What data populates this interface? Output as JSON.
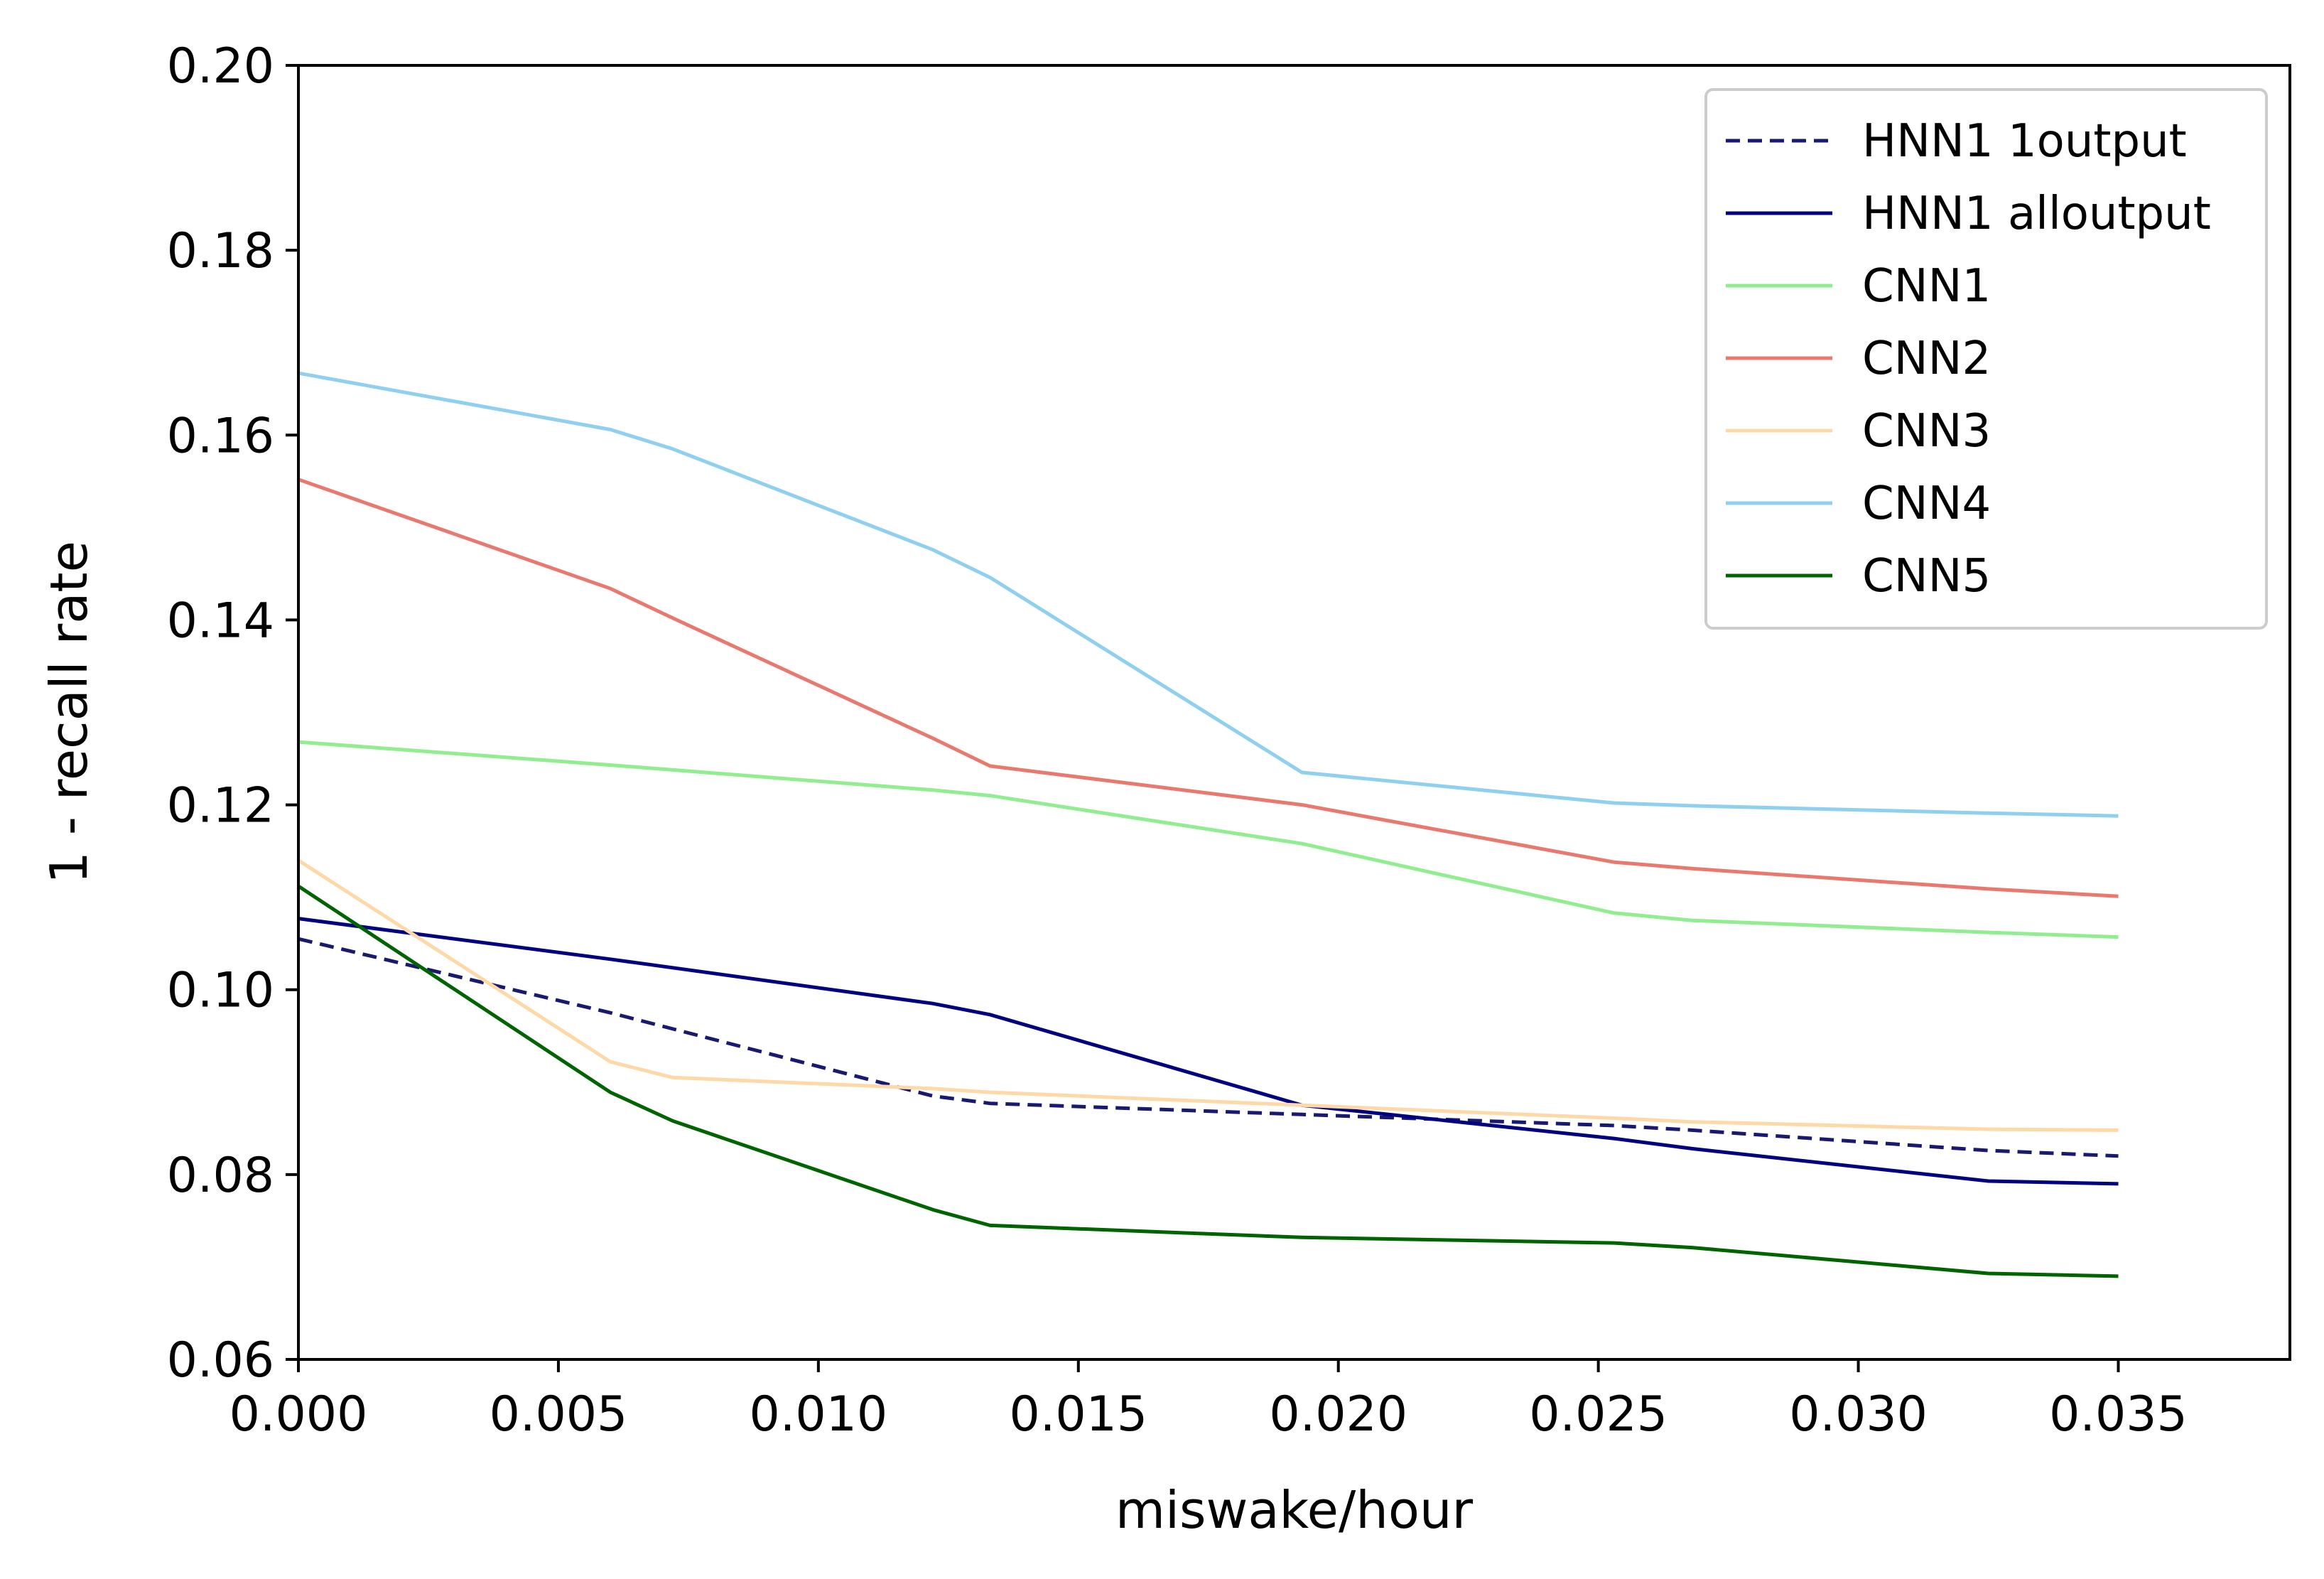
{
  "chart_data": {
    "type": "line",
    "xlabel": "miswake/hour",
    "ylabel": "1 - recall rate",
    "xlim": [
      0,
      0.0383
    ],
    "ylim": [
      0.06,
      0.2
    ],
    "xticks": [
      "0.000",
      "0.005",
      "0.010",
      "0.015",
      "0.020",
      "0.025",
      "0.030",
      "0.035"
    ],
    "yticks": [
      "0.06",
      "0.08",
      "0.10",
      "0.12",
      "0.14",
      "0.16",
      "0.18",
      "0.20"
    ],
    "grid": false,
    "legend_position": "top-right",
    "series": [
      {
        "name": "HNN1 1output",
        "color": "#191970",
        "dash": true,
        "points": [
          [
            0.0,
            0.1055
          ],
          [
            0.006,
            0.0975
          ],
          [
            0.0122,
            0.0885
          ],
          [
            0.0133,
            0.0877
          ],
          [
            0.0193,
            0.0865
          ],
          [
            0.0253,
            0.0853
          ],
          [
            0.0268,
            0.0848
          ],
          [
            0.0325,
            0.0826
          ],
          [
            0.035,
            0.082
          ]
        ]
      },
      {
        "name": "HNN1 alloutput",
        "color": "#000080",
        "dash": false,
        "points": [
          [
            0.0,
            0.1077
          ],
          [
            0.006,
            0.1033
          ],
          [
            0.0122,
            0.0985
          ],
          [
            0.0133,
            0.0973
          ],
          [
            0.0193,
            0.0875
          ],
          [
            0.0253,
            0.0839
          ],
          [
            0.0268,
            0.0828
          ],
          [
            0.0325,
            0.0793
          ],
          [
            0.035,
            0.079
          ]
        ]
      },
      {
        "name": "CNN1",
        "color": "#90ee90",
        "dash": false,
        "points": [
          [
            0.0,
            0.1268
          ],
          [
            0.006,
            0.1243
          ],
          [
            0.0122,
            0.1216
          ],
          [
            0.0133,
            0.121
          ],
          [
            0.0193,
            0.1158
          ],
          [
            0.0253,
            0.1083
          ],
          [
            0.0268,
            0.1075
          ],
          [
            0.0325,
            0.1062
          ],
          [
            0.035,
            0.1057
          ]
        ]
      },
      {
        "name": "CNN2",
        "color": "#e9796f",
        "dash": false,
        "points": [
          [
            0.0,
            0.1552
          ],
          [
            0.006,
            0.1434
          ],
          [
            0.0072,
            0.1402
          ],
          [
            0.0122,
            0.1272
          ],
          [
            0.0133,
            0.1242
          ],
          [
            0.0193,
            0.12
          ],
          [
            0.0253,
            0.1138
          ],
          [
            0.0268,
            0.1131
          ],
          [
            0.0325,
            0.1109
          ],
          [
            0.035,
            0.1101
          ]
        ]
      },
      {
        "name": "CNN3",
        "color": "#ffd8a8",
        "dash": false,
        "points": [
          [
            0.0,
            0.114
          ],
          [
            0.006,
            0.0922
          ],
          [
            0.0072,
            0.0905
          ],
          [
            0.0122,
            0.0893
          ],
          [
            0.0133,
            0.0889
          ],
          [
            0.0193,
            0.0875
          ],
          [
            0.0253,
            0.0861
          ],
          [
            0.0268,
            0.0857
          ],
          [
            0.0325,
            0.0849
          ],
          [
            0.035,
            0.0848
          ]
        ]
      },
      {
        "name": "CNN4",
        "color": "#8fcfef",
        "dash": false,
        "points": [
          [
            0.0,
            0.1667
          ],
          [
            0.006,
            0.1606
          ],
          [
            0.0072,
            0.1585
          ],
          [
            0.0122,
            0.1476
          ],
          [
            0.0133,
            0.1446
          ],
          [
            0.0193,
            0.1235
          ],
          [
            0.0253,
            0.1202
          ],
          [
            0.0268,
            0.1199
          ],
          [
            0.0325,
            0.1191
          ],
          [
            0.035,
            0.1188
          ]
        ]
      },
      {
        "name": "CNN5",
        "color": "#006400",
        "dash": false,
        "points": [
          [
            0.0,
            0.1112
          ],
          [
            0.006,
            0.0889
          ],
          [
            0.0072,
            0.0858
          ],
          [
            0.0122,
            0.0762
          ],
          [
            0.0133,
            0.0745
          ],
          [
            0.0193,
            0.0732
          ],
          [
            0.0253,
            0.0726
          ],
          [
            0.0268,
            0.0721
          ],
          [
            0.0325,
            0.0693
          ],
          [
            0.035,
            0.069
          ]
        ]
      }
    ]
  }
}
